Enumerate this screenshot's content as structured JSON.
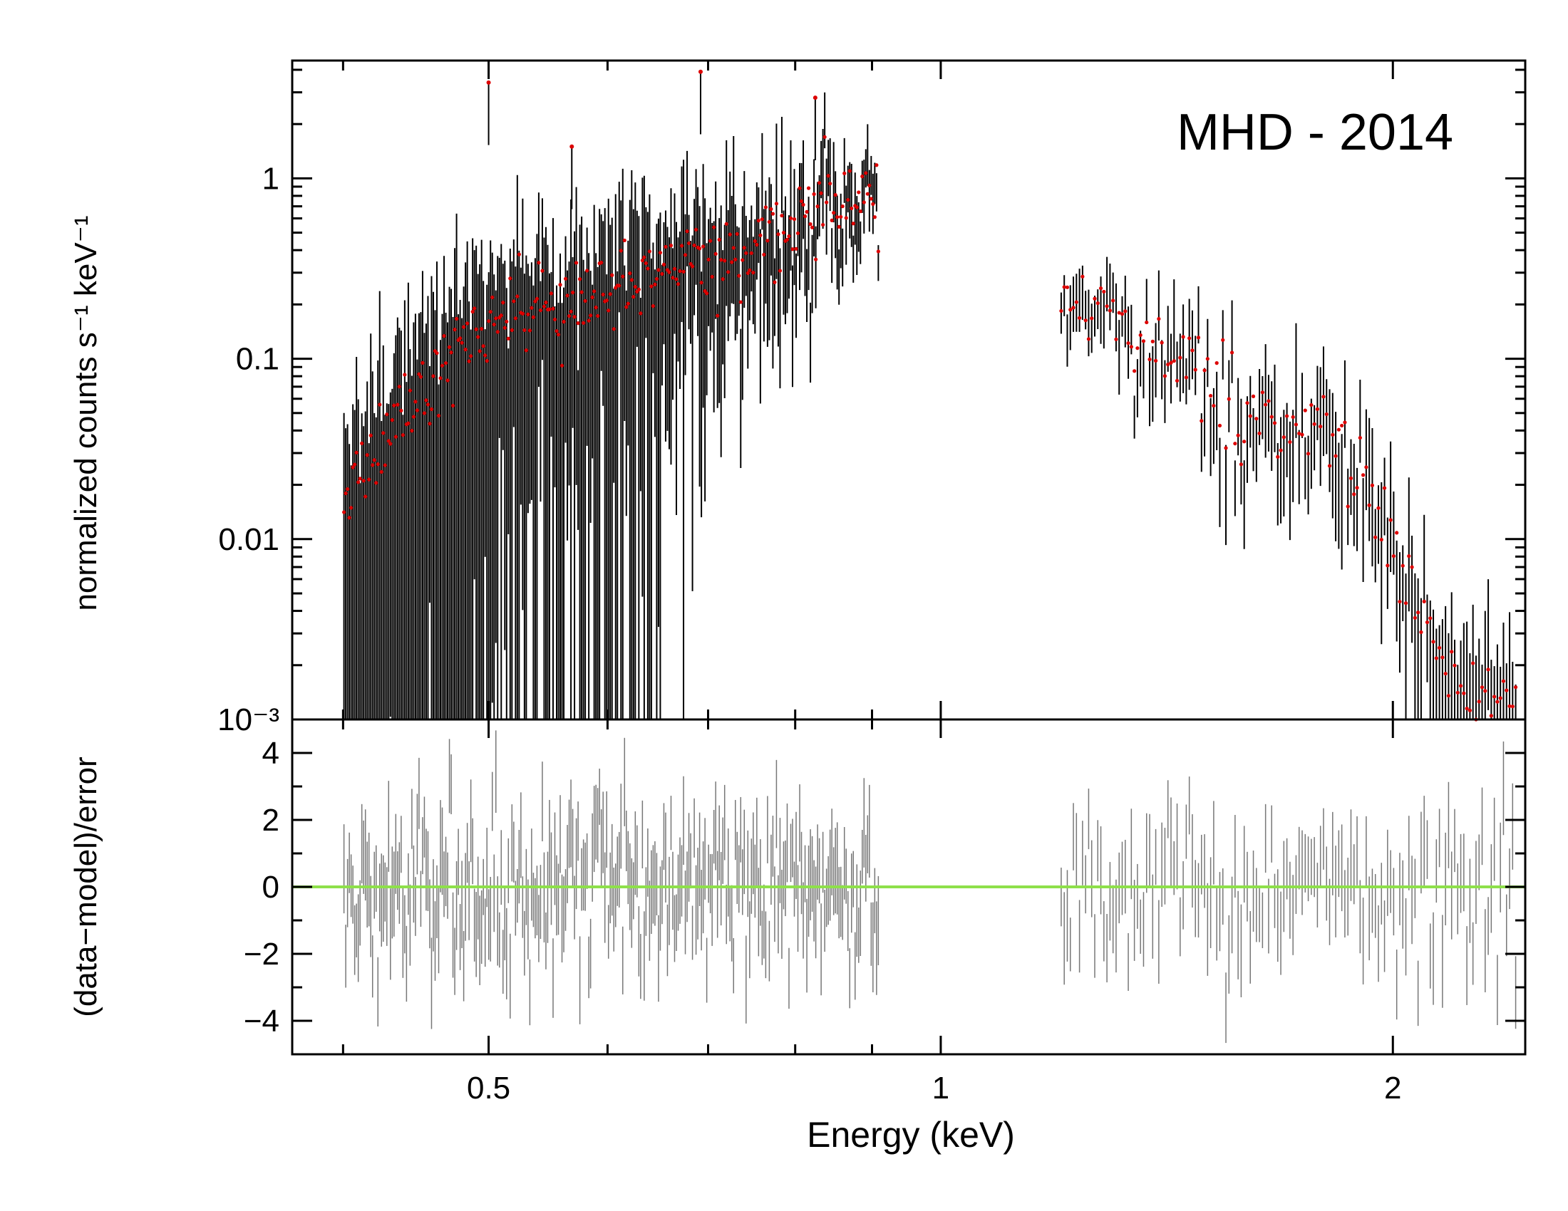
{
  "chart_data": {
    "type": "scatter",
    "title": "MHD - 2014",
    "xlabel": "Energy (keV)",
    "xscale": "log",
    "xlim": [
      0.37,
      2.45
    ],
    "x_ticks": [
      {
        "value": 0.5,
        "label": "0.5"
      },
      {
        "value": 1,
        "label": "1"
      },
      {
        "value": 2,
        "label": "2"
      }
    ],
    "legend": "none",
    "grid": false,
    "top_panel": {
      "ylabel": "normalized counts s⁻¹ keV⁻¹",
      "yscale": "log",
      "ylim": [
        0.001,
        4.5
      ],
      "y_ticks": [
        {
          "value": 1,
          "label": "1"
        },
        {
          "value": 0.1,
          "label": "0.1"
        },
        {
          "value": 0.01,
          "label": "0.01"
        },
        {
          "value": 0.001,
          "label": "10⁻³"
        }
      ],
      "series": [
        {
          "name": "data",
          "color": "#000000",
          "style": "error-bars",
          "segments": [
            {
              "x_start": 0.4,
              "x_end": 0.91,
              "anchors": [
                [
                  0.4,
                  0.015
                ],
                [
                  0.42,
                  0.035
                ],
                [
                  0.45,
                  0.06
                ],
                [
                  0.48,
                  0.12
                ],
                [
                  0.5,
                  0.16
                ],
                [
                  0.55,
                  0.2
                ],
                [
                  0.6,
                  0.22
                ],
                [
                  0.65,
                  0.3
                ],
                [
                  0.7,
                  0.35
                ],
                [
                  0.75,
                  0.4
                ],
                [
                  0.8,
                  0.6
                ],
                [
                  0.85,
                  0.75
                ],
                [
                  0.91,
                  0.7
                ]
              ]
            },
            {
              "x_start": 1.2,
              "x_end": 2.42,
              "anchors": [
                [
                  1.2,
                  0.22
                ],
                [
                  1.25,
                  0.17
                ],
                [
                  1.3,
                  0.22
                ],
                [
                  1.35,
                  0.12
                ],
                [
                  1.4,
                  0.11
                ],
                [
                  1.5,
                  0.08
                ],
                [
                  1.6,
                  0.05
                ],
                [
                  1.7,
                  0.035
                ],
                [
                  1.8,
                  0.04
                ],
                [
                  1.9,
                  0.02
                ],
                [
                  2.0,
                  0.01
                ],
                [
                  2.1,
                  0.003
                ],
                [
                  2.2,
                  0.0015
                ]
              ]
            }
          ]
        },
        {
          "name": "model",
          "color": "#dd0000",
          "style": "dots"
        }
      ],
      "lines": [
        {
          "x": 0.692,
          "peak": 3.9
        },
        {
          "x": 0.5,
          "peak": 3.4
        },
        {
          "x": 0.568,
          "peak": 1.5
        },
        {
          "x": 0.825,
          "peak": 2.8
        }
      ]
    },
    "bottom_panel": {
      "ylabel": "(data−model)/error",
      "ylim": [
        -5,
        5
      ],
      "y_ticks": [
        {
          "value": 4,
          "label": "4"
        },
        {
          "value": 2,
          "label": "2"
        },
        {
          "value": 0,
          "label": "0"
        },
        {
          "value": -2,
          "label": "−2"
        },
        {
          "value": -4,
          "label": "−4"
        }
      ],
      "zero_line": {
        "value": 0,
        "color": "#8ee04a"
      },
      "series": [
        {
          "name": "residuals",
          "color": "#777777",
          "style": "error-bars",
          "mean": 0,
          "spread": 1.3
        }
      ]
    }
  }
}
